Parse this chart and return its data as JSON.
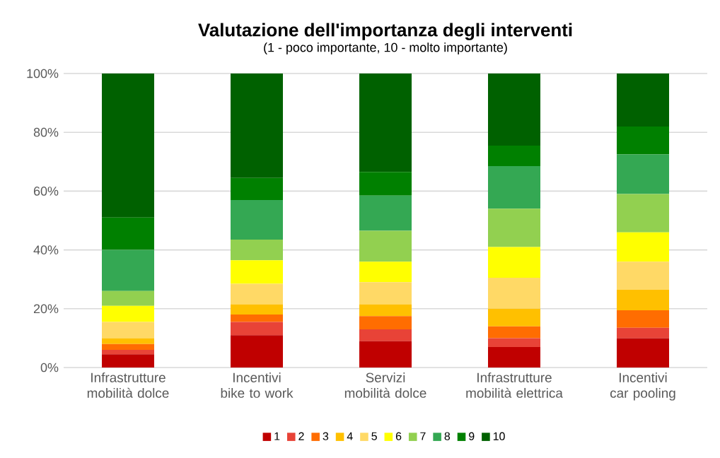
{
  "chart_data": {
    "type": "bar",
    "title": "Valutazione dell'importanza degli interventi",
    "subtitle": "(1 - poco importante, 10 - molto importante)",
    "categories": [
      "Infrastrutture mobilità dolce",
      "Incentivi bike to work",
      "Servizi mobilità dolce",
      "Infrastrutture mobilità elettrica",
      "Incentivi car pooling"
    ],
    "stacked": true,
    "grid": "y",
    "legend": "bottom",
    "ylim": [
      0,
      100
    ],
    "yticks": [
      {
        "value": 0,
        "label": "0%"
      },
      {
        "value": 20,
        "label": "20%"
      },
      {
        "value": 40,
        "label": "40%"
      },
      {
        "value": 60,
        "label": "60%"
      },
      {
        "value": 80,
        "label": "80%"
      },
      {
        "value": 100,
        "label": "100%"
      }
    ],
    "series": [
      {
        "name": "1",
        "color": "#c00000",
        "values": [
          4.5,
          11,
          9,
          7,
          10
        ]
      },
      {
        "name": "2",
        "color": "#e84337",
        "values": [
          1.5,
          4.5,
          4,
          3,
          3.5
        ]
      },
      {
        "name": "3",
        "color": "#ff6d01",
        "values": [
          2,
          2.5,
          4.5,
          4,
          6
        ]
      },
      {
        "name": "4",
        "color": "#ffc000",
        "values": [
          2,
          3.5,
          4,
          6,
          7
        ]
      },
      {
        "name": "5",
        "color": "#ffd966",
        "values": [
          5.5,
          7,
          7.5,
          10.5,
          9.5
        ]
      },
      {
        "name": "6",
        "color": "#ffff00",
        "values": [
          5.5,
          8,
          7,
          10.5,
          10
        ]
      },
      {
        "name": "7",
        "color": "#92d050",
        "values": [
          5,
          7,
          10.5,
          13,
          13
        ]
      },
      {
        "name": "8",
        "color": "#34a853",
        "values": [
          14,
          13.5,
          12,
          14.5,
          13.5
        ]
      },
      {
        "name": "9",
        "color": "#008000",
        "values": [
          11,
          7.5,
          8,
          7,
          9.5
        ]
      },
      {
        "name": "10",
        "color": "#006100",
        "values": [
          49,
          35.5,
          33.5,
          24.5,
          18
        ]
      }
    ]
  }
}
